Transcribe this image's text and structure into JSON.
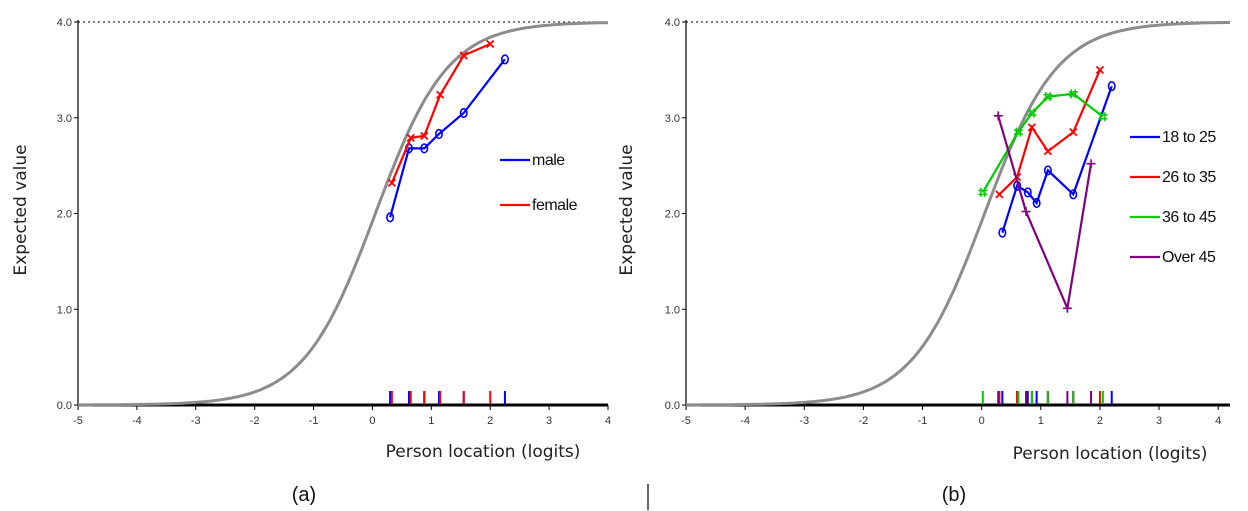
{
  "captions": {
    "a": "(a)",
    "b": "(b)"
  },
  "chart_data": [
    {
      "type": "line",
      "panel": "a",
      "xlabel": "Person location (logits)",
      "ylabel": "Expected value",
      "xlim": [
        -5,
        4
      ],
      "ylim": [
        0,
        4
      ],
      "xticks": [
        "-5",
        "-4",
        "-3",
        "-2",
        "-1",
        "0",
        "1",
        "2",
        "3",
        "4"
      ],
      "yticks": [
        "0.0",
        "1.0",
        "2.0",
        "3.0",
        "4.0"
      ],
      "max_line": 4.0,
      "curve": {
        "location": 0.05,
        "scale": 1.63
      },
      "legend_position": "right",
      "series": [
        {
          "name": "male",
          "color": "#0000ff",
          "marker": "o",
          "x": [
            0.3,
            0.62,
            0.88,
            1.13,
            1.55,
            2.25
          ],
          "y": [
            1.96,
            2.68,
            2.68,
            2.83,
            3.05,
            3.61
          ],
          "rug": [
            0.3,
            0.62,
            0.88,
            1.13,
            1.55,
            2.25
          ]
        },
        {
          "name": "female",
          "color": "#ff0000",
          "marker": "x",
          "x": [
            0.33,
            0.65,
            0.88,
            1.15,
            1.55,
            2.0
          ],
          "y": [
            2.32,
            2.79,
            2.81,
            3.24,
            3.65,
            3.77
          ],
          "rug": [
            0.33,
            0.65,
            0.88,
            1.15,
            1.55,
            2.0
          ]
        }
      ]
    },
    {
      "type": "line",
      "panel": "b",
      "xlabel": "Person location (logits)",
      "ylabel": "Expected value",
      "xlim": [
        -5,
        4.2
      ],
      "ylim": [
        0,
        4
      ],
      "xticks": [
        "-5",
        "-4",
        "-3",
        "-2",
        "-1",
        "0",
        "1",
        "2",
        "3",
        "4"
      ],
      "yticks": [
        "0.0",
        "1.0",
        "2.0",
        "3.0",
        "4.0"
      ],
      "max_line": 4.0,
      "curve": {
        "location": 0.05,
        "scale": 1.63
      },
      "legend_position": "right",
      "series": [
        {
          "name": "18 to 25",
          "color": "#0000ff",
          "marker": "o",
          "x": [
            0.35,
            0.6,
            0.78,
            0.93,
            1.12,
            1.55,
            2.2
          ],
          "y": [
            1.8,
            2.29,
            2.22,
            2.11,
            2.45,
            2.2,
            3.33
          ],
          "rug": [
            0.35,
            0.6,
            0.78,
            0.93,
            1.12,
            1.55,
            2.2
          ]
        },
        {
          "name": "26 to 35",
          "color": "#ff0000",
          "marker": "x",
          "x": [
            0.3,
            0.6,
            0.85,
            1.12,
            1.55,
            2.0
          ],
          "y": [
            2.2,
            2.38,
            2.9,
            2.65,
            2.85,
            3.5
          ],
          "rug": [
            0.3,
            0.6,
            0.85,
            1.12,
            1.55,
            2.0
          ]
        },
        {
          "name": "36 to 45",
          "color": "#00cc00",
          "marker": "#",
          "x": [
            0.02,
            0.62,
            0.85,
            1.12,
            1.55,
            2.05
          ],
          "y": [
            2.22,
            2.85,
            3.05,
            3.22,
            3.25,
            3.01
          ],
          "rug": [
            0.02,
            0.62,
            0.85,
            1.12,
            1.55,
            2.05
          ]
        },
        {
          "name": "Over 45",
          "color": "#800080",
          "marker": "+",
          "x": [
            0.28,
            0.75,
            1.45,
            1.85
          ],
          "y": [
            3.02,
            2.02,
            1.01,
            2.52
          ],
          "rug": [
            0.28,
            0.75,
            1.45,
            1.85
          ]
        }
      ]
    }
  ]
}
